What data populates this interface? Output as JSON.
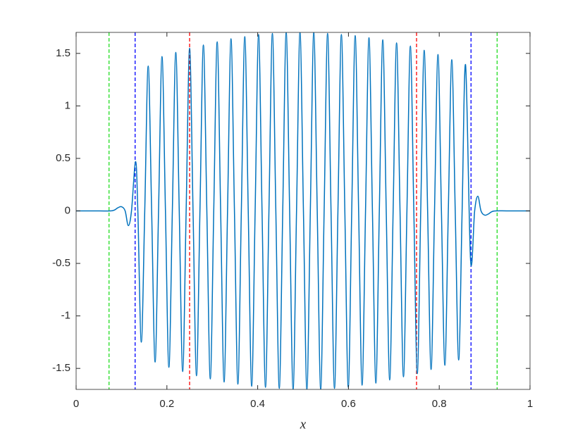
{
  "chart_data": {
    "type": "line",
    "xlabel": "x",
    "color": "#0072bd",
    "x": [
      0,
      0.05,
      0.08,
      0.092,
      0.1,
      0.108,
      0.115,
      0.122,
      0.131,
      0.136,
      0.1436,
      0.1512,
      0.1588,
      0.1664,
      0.174,
      0.1816,
      0.1892,
      0.1968,
      0.2044,
      0.212,
      0.2196,
      0.2272,
      0.2348,
      0.2424,
      0.25,
      0.2576,
      0.2652,
      0.2728,
      0.2804,
      0.288,
      0.2956,
      0.3032,
      0.3108,
      0.3184,
      0.326,
      0.3336,
      0.3412,
      0.3488,
      0.3564,
      0.364,
      0.3716,
      0.3792,
      0.3868,
      0.3944,
      0.402,
      0.4096,
      0.4172,
      0.4248,
      0.4324,
      0.44,
      0.4476,
      0.4552,
      0.4628,
      0.4704,
      0.478,
      0.4856,
      0.4932,
      0.5008,
      0.5084,
      0.516,
      0.5236,
      0.5312,
      0.5388,
      0.5464,
      0.554,
      0.5616,
      0.5692,
      0.5768,
      0.5844,
      0.592,
      0.5996,
      0.6072,
      0.6148,
      0.6224,
      0.63,
      0.6376,
      0.6452,
      0.6528,
      0.6604,
      0.668,
      0.6756,
      0.6832,
      0.6908,
      0.6984,
      0.706,
      0.7136,
      0.7212,
      0.7288,
      0.7364,
      0.744,
      0.7516,
      0.7592,
      0.7668,
      0.7744,
      0.782,
      0.7896,
      0.7972,
      0.8048,
      0.8124,
      0.82,
      0.8276,
      0.8352,
      0.8428,
      0.8504,
      0.858,
      0.869,
      0.878,
      0.885,
      0.892,
      0.9,
      0.908,
      0.92,
      0.95,
      1
    ],
    "values": [
      0,
      0,
      0.002,
      0.03,
      0.04,
      0,
      -0.14,
      0,
      0.47,
      0,
      -1.25,
      0,
      1.38,
      0,
      -1.44,
      0,
      1.47,
      0,
      -1.49,
      0,
      1.51,
      0,
      -1.53,
      0,
      1.55,
      0,
      -1.57,
      0,
      1.58,
      0,
      -1.6,
      0,
      1.61,
      0,
      -1.63,
      0,
      1.64,
      0,
      -1.65,
      0,
      1.66,
      0,
      -1.67,
      0,
      1.68,
      0,
      -1.68,
      0,
      1.69,
      0,
      -1.69,
      0,
      1.7,
      0,
      -1.7,
      0,
      1.7,
      0,
      -1.7,
      0,
      1.7,
      0,
      -1.7,
      0,
      1.69,
      0,
      -1.69,
      0,
      1.68,
      0,
      -1.68,
      0,
      1.67,
      0,
      -1.66,
      0,
      1.65,
      0,
      -1.64,
      0,
      1.63,
      0,
      -1.61,
      0,
      1.6,
      0,
      -1.58,
      0,
      1.57,
      0,
      -1.55,
      0,
      1.53,
      0,
      -1.51,
      0,
      1.49,
      0,
      -1.47,
      0,
      1.44,
      0,
      -1.42,
      0,
      1.39,
      -0.47,
      0,
      0.14,
      0,
      -0.04,
      -0.03,
      -0.002,
      0,
      0
    ],
    "vlines": [
      {
        "value": 0.0725,
        "color": "#22dd22"
      },
      {
        "value": 0.13,
        "color": "#0000ff"
      },
      {
        "value": 0.25,
        "color": "#ff0000"
      },
      {
        "value": 0.75,
        "color": "#ff0000"
      },
      {
        "value": 0.87,
        "color": "#0000ff"
      },
      {
        "value": 0.9275,
        "color": "#22dd22"
      }
    ],
    "xlim": [
      0,
      1
    ],
    "ylim": [
      -1.7,
      1.7
    ],
    "xticks": [
      0,
      0.2,
      0.4,
      0.6,
      0.8,
      1
    ],
    "yticks": [
      -1.5,
      -1,
      -0.5,
      0,
      0.5,
      1,
      1.5
    ],
    "grid": false
  }
}
